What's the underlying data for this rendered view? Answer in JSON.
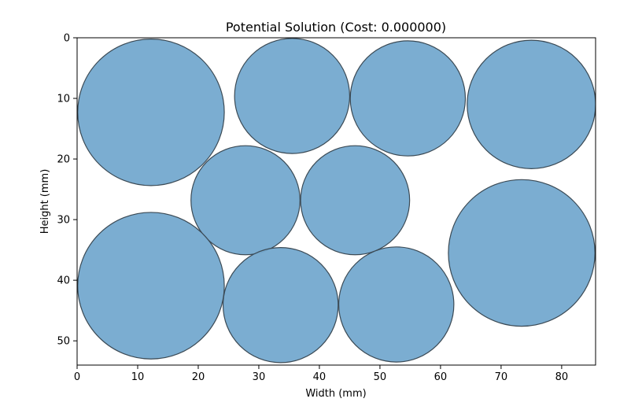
{
  "chart_data": {
    "type": "scatter",
    "title": "Potential Solution (Cost: 0.000000)",
    "xlabel": "Width (mm)",
    "ylabel": "Height (mm)",
    "xlim": [
      0,
      85.6
    ],
    "ylim": [
      54,
      0
    ],
    "y_inverted": true,
    "grid": false,
    "x_ticks": [
      0,
      10,
      20,
      30,
      40,
      50,
      60,
      70,
      80
    ],
    "y_ticks": [
      0,
      10,
      20,
      30,
      40,
      50
    ],
    "circles": [
      {
        "x": 12.2,
        "y": 12.3,
        "r": 12.1
      },
      {
        "x": 35.5,
        "y": 9.6,
        "r": 9.5
      },
      {
        "x": 54.6,
        "y": 10.0,
        "r": 9.5
      },
      {
        "x": 75.0,
        "y": 11.0,
        "r": 10.6
      },
      {
        "x": 27.8,
        "y": 26.8,
        "r": 9.0
      },
      {
        "x": 45.9,
        "y": 26.8,
        "r": 9.0
      },
      {
        "x": 12.2,
        "y": 40.9,
        "r": 12.1
      },
      {
        "x": 33.6,
        "y": 44.1,
        "r": 9.5
      },
      {
        "x": 52.7,
        "y": 44.0,
        "r": 9.5
      },
      {
        "x": 73.4,
        "y": 35.5,
        "r": 12.1
      }
    ],
    "fill_color": "#74a9cf",
    "edge_color": "#3b4a55"
  }
}
